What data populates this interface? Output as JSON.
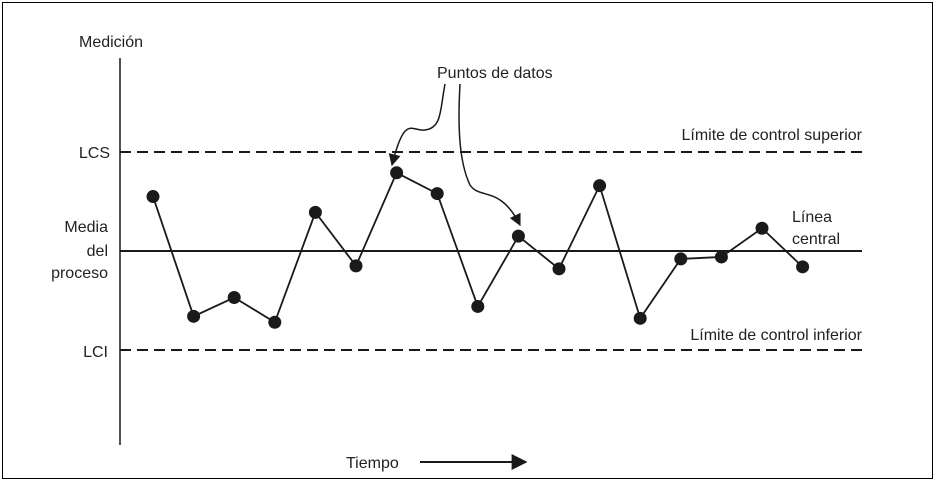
{
  "chart_data": {
    "type": "line",
    "title": "",
    "xlabel": "Tiempo",
    "ylabel": "Medición",
    "y_axis_labels": {
      "ucl": "LCS",
      "center": [
        "Media",
        "del",
        "proceso"
      ],
      "lcl": "LCI"
    },
    "reference_lines": {
      "ucl_label": "Límite de control superior",
      "center_label": [
        "Línea",
        "central"
      ],
      "lcl_label": "Límite de control inferior"
    },
    "annotation": "Puntos de datos",
    "control_limits": {
      "ucl": 1.0,
      "center": 0.0,
      "lcl": -1.0
    },
    "ylim": [
      -2.0,
      2.0
    ],
    "series": [
      {
        "values": [
          0.55,
          -0.66,
          -0.47,
          -0.72,
          0.39,
          -0.15,
          0.79,
          0.58,
          -0.56,
          0.15,
          -0.18,
          0.66,
          -0.68,
          -0.08,
          -0.06,
          0.23,
          -0.16
        ]
      }
    ],
    "grid": false,
    "legend": "none",
    "colors": {
      "ink": "#1a1a1a"
    }
  }
}
